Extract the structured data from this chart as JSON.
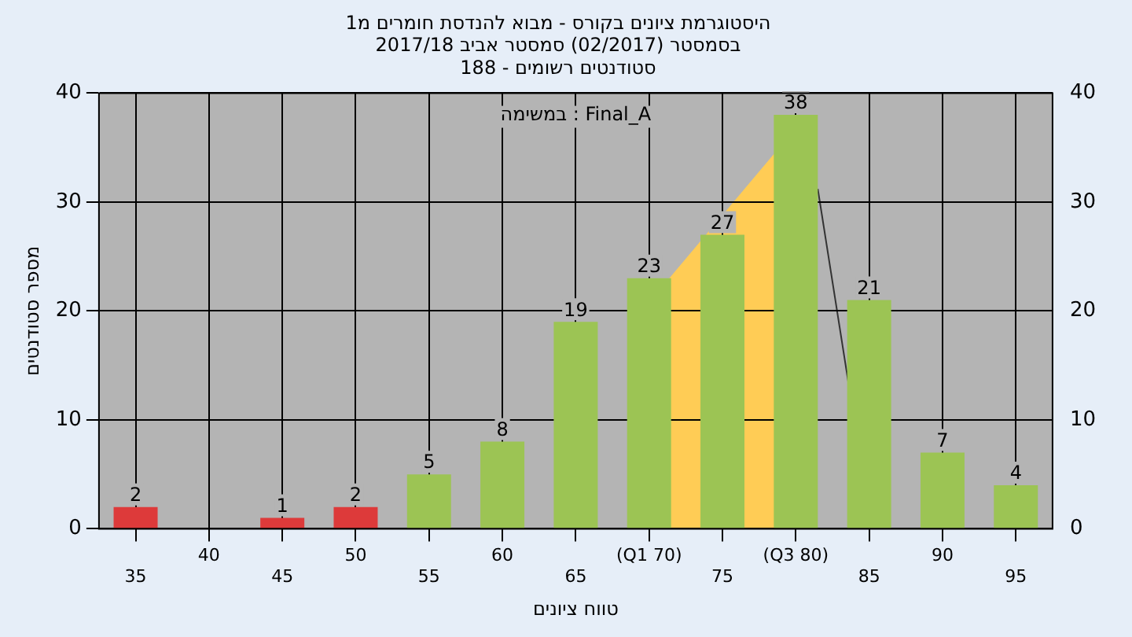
{
  "chart_data": {
    "type": "bar",
    "title": [
      "היסטוגרמת ציונים בקורס - מבוא להנדסת חומרים מ1",
      "בסמסטר (02/2017) סמסטר אביב 2017/18",
      "סטודנטים רשומים - 188"
    ],
    "xlabel": "טווח ציונים",
    "ylabel": "מספר סטודנטים",
    "annotations": [
      "במשימה : Final_A"
    ],
    "categories": [
      "35",
      "40",
      "45",
      "50",
      "55",
      "60",
      "65",
      "(Q1 70)",
      "75",
      "(Q3 80)",
      "85",
      "90",
      "95"
    ],
    "series": [
      {
        "colors": [
          "#dd3a3a",
          "#dd3a3a",
          "#dd3a3a",
          "#dd3a3a",
          "#9cc454",
          "#9cc454",
          "#9cc454",
          "#9cc454",
          "#9cc454",
          "#9cc454",
          "#9cc454",
          "#9cc454",
          "#9cc454"
        ],
        "values": [
          2,
          0,
          1,
          2,
          5,
          8,
          19,
          23,
          27,
          38,
          21,
          7,
          4
        ],
        "value_labels": [
          "2",
          null,
          "1",
          "2",
          "5",
          "8",
          "19",
          "23",
          "27",
          "38",
          "21",
          "7",
          "4"
        ]
      }
    ],
    "ylim": [
      0,
      40
    ],
    "yticks": [
      0,
      10,
      20,
      30,
      40
    ],
    "y2lim": [
      0,
      40
    ],
    "y2ticks": [
      0,
      10,
      20,
      30,
      40
    ],
    "grid": true,
    "legend": false
  }
}
